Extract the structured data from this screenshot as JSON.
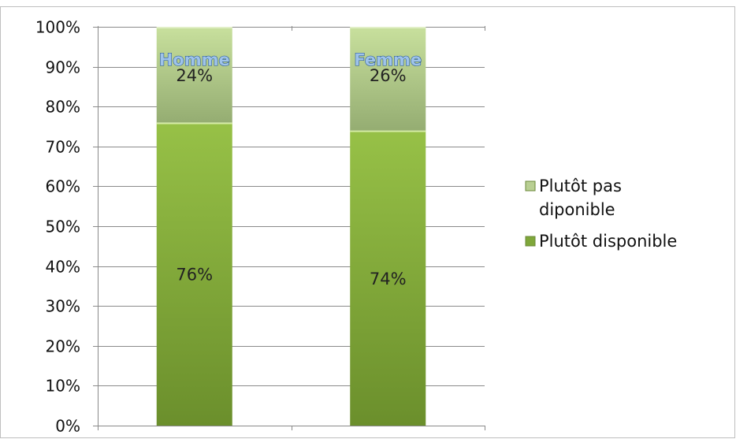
{
  "chart_data": {
    "type": "bar",
    "stacked": true,
    "categories": [
      "Homme",
      "Femme"
    ],
    "series": [
      {
        "name": "Plutôt disponible",
        "values": [
          76,
          74
        ],
        "labels": [
          "76%",
          "74%"
        ],
        "color": "#8db83b"
      },
      {
        "name": "Plutôt pas diponible",
        "values": [
          24,
          26
        ],
        "labels": [
          "24%",
          "26%"
        ],
        "color": "#b9cf93"
      }
    ],
    "ylim": [
      0,
      100
    ],
    "yticks": [
      "0%",
      "10%",
      "20%",
      "30%",
      "40%",
      "50%",
      "60%",
      "70%",
      "80%",
      "90%",
      "100%"
    ],
    "grid": true,
    "legend": {
      "position": "right",
      "entries": [
        {
          "lines": [
            "Plutôt pas",
            "diponible"
          ],
          "color": "#b9cf93"
        },
        {
          "lines": [
            "Plutôt disponible"
          ],
          "color": "#7fa73a"
        }
      ]
    },
    "category_label_position": "top"
  }
}
